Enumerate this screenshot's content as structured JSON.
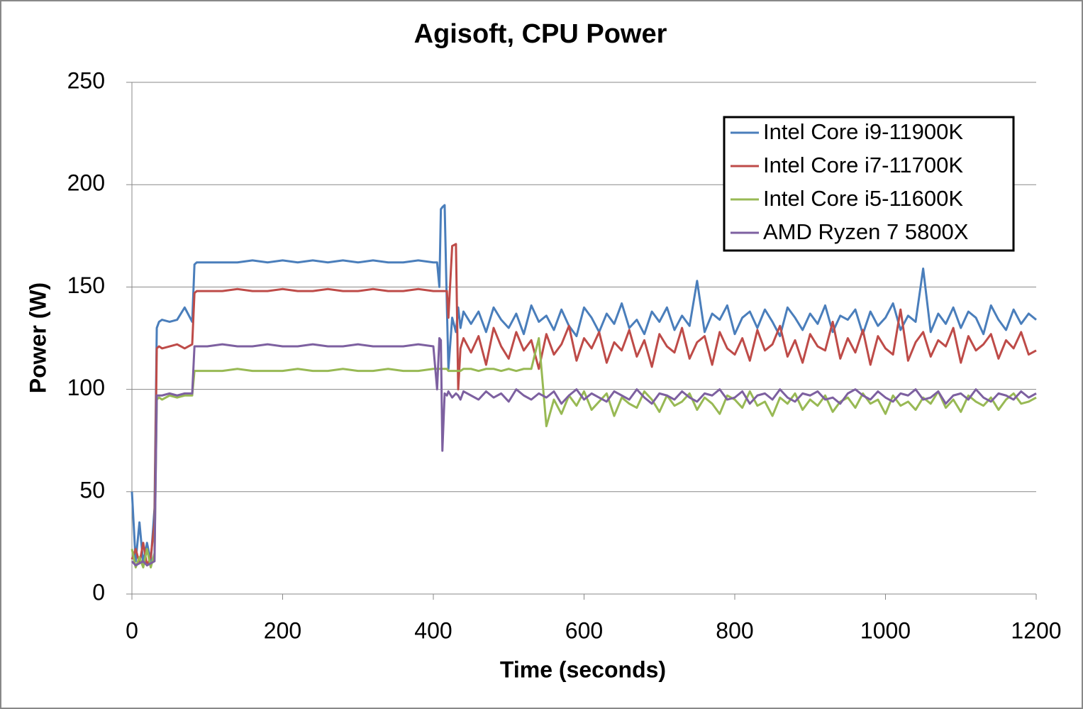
{
  "chart_data": {
    "type": "line",
    "title": "Agisoft, CPU Power",
    "x_label": "Time (seconds)",
    "y_label": "Power (W)",
    "xlim": [
      0,
      1200
    ],
    "xticks": [
      0,
      200,
      400,
      600,
      800,
      1000,
      1200
    ],
    "ylim": [
      0,
      250
    ],
    "yticks": [
      0,
      50,
      100,
      150,
      200,
      250
    ],
    "grid": true,
    "legend": "upper right",
    "x": [
      0,
      5,
      10,
      15,
      20,
      25,
      30,
      33,
      36,
      40,
      50,
      60,
      70,
      80,
      83,
      86,
      90,
      100,
      120,
      140,
      160,
      180,
      200,
      220,
      240,
      260,
      280,
      300,
      320,
      340,
      360,
      380,
      400,
      405,
      408,
      410,
      412,
      415,
      418,
      420,
      425,
      430,
      433,
      436,
      440,
      450,
      460,
      470,
      480,
      490,
      500,
      510,
      520,
      530,
      540,
      550,
      560,
      570,
      580,
      590,
      600,
      610,
      620,
      630,
      640,
      650,
      660,
      670,
      680,
      690,
      700,
      710,
      720,
      730,
      740,
      750,
      760,
      770,
      780,
      790,
      800,
      810,
      820,
      830,
      840,
      850,
      860,
      870,
      880,
      890,
      900,
      910,
      920,
      930,
      940,
      950,
      960,
      970,
      980,
      990,
      1000,
      1010,
      1020,
      1030,
      1040,
      1050,
      1060,
      1070,
      1080,
      1090,
      1100,
      1110,
      1120,
      1130,
      1140,
      1150,
      1160,
      1170,
      1180,
      1190,
      1200
    ],
    "series": [
      {
        "name": "Intel Core i9-11900K",
        "color": "#4a7ebb",
        "values": [
          50,
          16,
          35,
          15,
          25,
          16,
          42,
          130,
          133,
          134,
          133,
          134,
          140,
          133,
          161,
          162,
          162,
          162,
          162,
          162,
          163,
          162,
          163,
          162,
          163,
          162,
          163,
          162,
          163,
          162,
          162,
          163,
          162,
          162,
          150,
          188,
          189,
          190,
          140,
          110,
          135,
          128,
          140,
          130,
          138,
          132,
          138,
          128,
          140,
          134,
          130,
          137,
          127,
          141,
          133,
          136,
          129,
          139,
          131,
          126,
          140,
          135,
          128,
          137,
          132,
          142,
          130,
          134,
          127,
          138,
          133,
          140,
          129,
          136,
          131,
          153,
          128,
          137,
          134,
          141,
          127,
          135,
          138,
          130,
          139,
          133,
          126,
          140,
          135,
          129,
          137,
          132,
          141,
          128,
          136,
          134,
          139,
          127,
          138,
          131,
          135,
          142,
          129,
          136,
          133,
          159,
          128,
          137,
          132,
          140,
          130,
          138,
          135,
          127,
          141,
          134,
          129,
          139,
          132,
          137,
          134
        ]
      },
      {
        "name": "Intel Core i7-11700K",
        "color": "#be4b48",
        "values": [
          17,
          22,
          15,
          25,
          14,
          18,
          35,
          120,
          121,
          120,
          121,
          122,
          120,
          122,
          147,
          148,
          148,
          148,
          148,
          149,
          148,
          148,
          149,
          148,
          148,
          149,
          148,
          148,
          149,
          148,
          148,
          149,
          148,
          148,
          148,
          148,
          148,
          148,
          148,
          135,
          170,
          171,
          100,
          120,
          125,
          118,
          126,
          112,
          130,
          121,
          115,
          128,
          119,
          124,
          110,
          127,
          117,
          122,
          131,
          114,
          125,
          120,
          128,
          113,
          123,
          119,
          129,
          116,
          124,
          111,
          127,
          121,
          118,
          130,
          115,
          123,
          126,
          112,
          128,
          120,
          117,
          125,
          114,
          129,
          119,
          122,
          131,
          116,
          124,
          113,
          127,
          121,
          119,
          133,
          115,
          125,
          118,
          129,
          112,
          126,
          120,
          117,
          139,
          114,
          123,
          128,
          116,
          124,
          121,
          130,
          113,
          126,
          119,
          122,
          127,
          115,
          124,
          120,
          128,
          117,
          119
        ]
      },
      {
        "name": "Intel Core i5-11600K",
        "color": "#98b954",
        "values": [
          22,
          13,
          18,
          13,
          22,
          13,
          20,
          95,
          96,
          95,
          97,
          96,
          97,
          97,
          109,
          109,
          109,
          109,
          109,
          110,
          109,
          109,
          109,
          110,
          109,
          109,
          110,
          109,
          109,
          110,
          109,
          109,
          110,
          110,
          110,
          110,
          110,
          110,
          110,
          109,
          109,
          109,
          109,
          109,
          110,
          110,
          109,
          110,
          110,
          109,
          110,
          109,
          110,
          110,
          125,
          82,
          95,
          88,
          97,
          92,
          99,
          90,
          94,
          98,
          87,
          96,
          93,
          91,
          99,
          95,
          89,
          97,
          92,
          94,
          98,
          90,
          96,
          93,
          88,
          97,
          95,
          91,
          99,
          92,
          94,
          87,
          96,
          93,
          98,
          90,
          95,
          92,
          97,
          89,
          94,
          96,
          91,
          98,
          93,
          95,
          88,
          97,
          92,
          94,
          90,
          96,
          93,
          99,
          91,
          95,
          89,
          97,
          94,
          92,
          96,
          90,
          95,
          98,
          93,
          94,
          96
        ]
      },
      {
        "name": "AMD Ryzen 7 5800X",
        "color": "#7d60a0",
        "values": [
          16,
          14,
          15,
          16,
          14,
          15,
          16,
          97,
          97,
          97,
          98,
          97,
          98,
          98,
          121,
          121,
          121,
          121,
          122,
          121,
          121,
          122,
          121,
          121,
          122,
          121,
          121,
          122,
          121,
          121,
          121,
          122,
          121,
          100,
          125,
          124,
          70,
          98,
          97,
          99,
          96,
          98,
          97,
          95,
          99,
          97,
          95,
          99,
          96,
          98,
          94,
          100,
          97,
          95,
          98,
          96,
          99,
          93,
          97,
          100,
          95,
          98,
          96,
          94,
          99,
          97,
          95,
          100,
          96,
          93,
          98,
          97,
          95,
          99,
          96,
          94,
          98,
          97,
          100,
          95,
          96,
          99,
          93,
          97,
          98,
          95,
          100,
          96,
          94,
          98,
          97,
          99,
          95,
          96,
          93,
          98,
          100,
          97,
          95,
          99,
          96,
          94,
          98,
          97,
          100,
          95,
          96,
          99,
          93,
          97,
          98,
          95,
          100,
          96,
          94,
          98,
          97,
          95,
          99,
          96,
          98
        ]
      }
    ]
  }
}
